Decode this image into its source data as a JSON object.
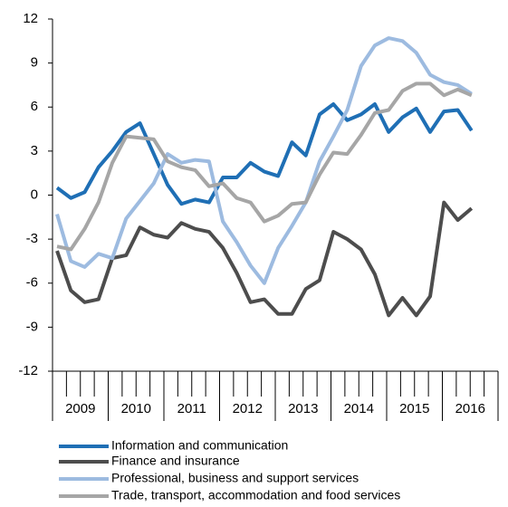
{
  "chart_data": {
    "type": "line",
    "categories": [
      "2009",
      null,
      null,
      null,
      "2010",
      null,
      null,
      null,
      "2011",
      null,
      null,
      null,
      "2012",
      null,
      null,
      null,
      "2013",
      null,
      null,
      null,
      "2014",
      null,
      null,
      null,
      "2015",
      null,
      null,
      null,
      "2016",
      null,
      null
    ],
    "series": [
      {
        "name": "Information and communication",
        "color": "#1f6fb5",
        "values": [
          0.5,
          -0.2,
          0.2,
          1.9,
          3.0,
          4.3,
          4.9,
          2.8,
          0.7,
          -0.6,
          -0.3,
          -0.5,
          1.2,
          1.2,
          2.2,
          1.6,
          1.3,
          3.6,
          2.7,
          5.5,
          6.2,
          5.1,
          5.5,
          6.2,
          4.3,
          5.3,
          5.9,
          4.3,
          5.7,
          5.8,
          4.4
        ]
      },
      {
        "name": "Finance and insurance",
        "color": "#4d4d4d",
        "values": [
          -3.8,
          -6.5,
          -7.3,
          -7.1,
          -4.3,
          -4.1,
          -2.2,
          -2.7,
          -2.9,
          -1.9,
          -2.3,
          -2.5,
          -3.6,
          -5.3,
          -7.3,
          -7.1,
          -8.1,
          -8.1,
          -6.4,
          -5.8,
          -2.5,
          -3.0,
          -3.7,
          -5.4,
          -8.2,
          -7.0,
          -8.2,
          -6.9,
          -0.5,
          -1.7,
          -0.9
        ]
      },
      {
        "name": "Professional, business and support services",
        "color": "#9dbbe0",
        "values": [
          -1.3,
          -4.5,
          -4.9,
          -4.0,
          -4.3,
          -1.6,
          -0.4,
          0.8,
          2.8,
          2.2,
          2.4,
          2.3,
          -1.8,
          -3.2,
          -4.8,
          -6.0,
          -3.6,
          -2.1,
          -0.5,
          2.3,
          4.0,
          5.8,
          8.8,
          10.2,
          10.7,
          10.5,
          9.7,
          8.2,
          7.7,
          7.5,
          6.9
        ]
      },
      {
        "name": "Trade, transport, accommodation and food services",
        "color": "#a6a6a6",
        "values": [
          -3.5,
          -3.7,
          -2.3,
          -0.5,
          2.2,
          4.0,
          3.9,
          3.8,
          2.3,
          1.9,
          1.7,
          0.6,
          0.8,
          -0.2,
          -0.5,
          -1.8,
          -1.4,
          -0.6,
          -0.5,
          1.4,
          2.9,
          2.8,
          4.1,
          5.6,
          5.8,
          7.1,
          7.6,
          7.6,
          6.8,
          7.2,
          6.8
        ]
      }
    ],
    "ylim": [
      -12,
      12
    ],
    "yticks": [
      -12,
      -9,
      -6,
      -3,
      0,
      3,
      6,
      9,
      12
    ]
  }
}
